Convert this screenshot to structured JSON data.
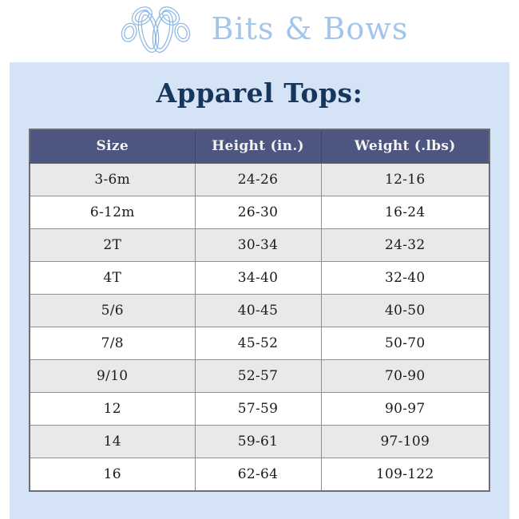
{
  "brand": {
    "name": "Bits & Bows",
    "logo_icon": "interlocking-bows-monogram"
  },
  "page": {
    "title": "Apparel Tops:"
  },
  "table": {
    "columns": [
      "Size",
      "Height (in.)",
      "Weight (.lbs)"
    ],
    "rows": [
      [
        "3-6m",
        "24-26",
        "12-16"
      ],
      [
        "6-12m",
        "26-30",
        "16-24"
      ],
      [
        "2T",
        "30-34",
        "24-32"
      ],
      [
        "4T",
        "34-40",
        "32-40"
      ],
      [
        "5/6",
        "40-45",
        "40-50"
      ],
      [
        "7/8",
        "45-52",
        "50-70"
      ],
      [
        "9/10",
        "52-57",
        "70-90"
      ],
      [
        "12",
        "57-59",
        "90-97"
      ],
      [
        "14",
        "59-61",
        "97-109"
      ],
      [
        "16",
        "62-64",
        "109-122"
      ]
    ]
  },
  "colors": {
    "panel_background": "#d4e3f5",
    "table_header_background": "#4c5681",
    "table_header_text": "#f6f4f0",
    "row_stripe_gray": "#e9e8eb",
    "row_white": "#ffffff",
    "title_navy": "#17365c",
    "brand_blue": "#a3c5ec",
    "logo_stroke_blue": "#8fb8e6",
    "cell_border_gray": "#8f8f8f"
  }
}
